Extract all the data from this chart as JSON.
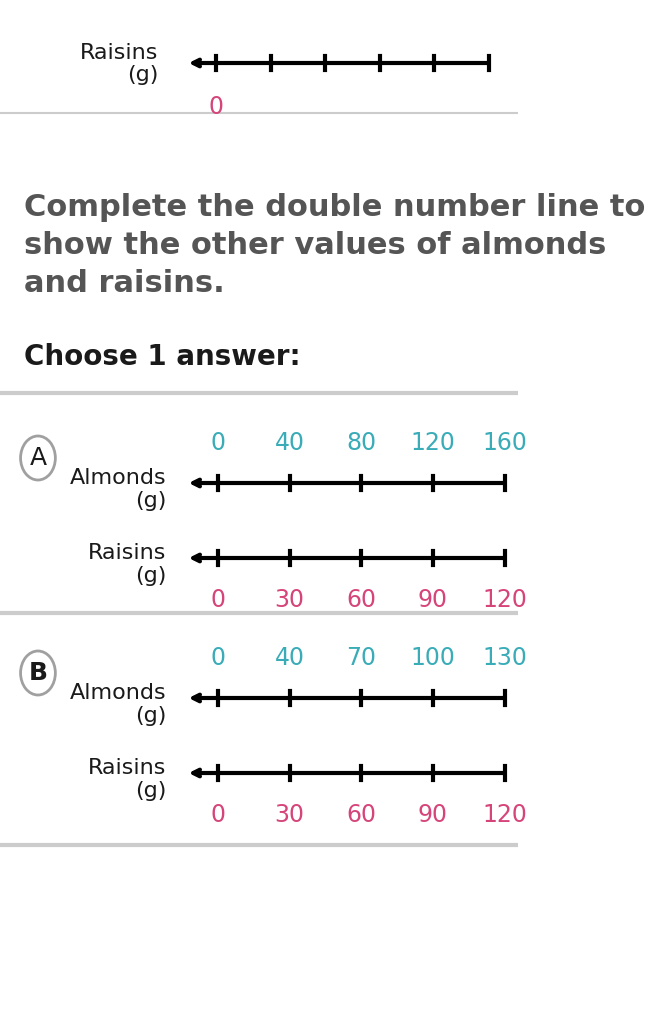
{
  "bg_color": "#ffffff",
  "title_text": "Complete the double number line to\nshow the other values of almonds\nand raisins.",
  "choose_text": "Choose 1 answer:",
  "top_label": "Raisins\n(g)",
  "top_zero": "0",
  "teal_color": "#3aacb8",
  "pink_color": "#d6457a",
  "black_color": "#1a1a1a",
  "gray_color": "#a0a0a0",
  "separator_color": "#cccccc",
  "option_A": {
    "label": "A",
    "almonds_values": [
      "0",
      "40",
      "80",
      "120",
      "160"
    ],
    "raisins_values": [
      "0",
      "30",
      "60",
      "90",
      "120"
    ]
  },
  "option_B": {
    "label": "B",
    "almonds_values": [
      "0",
      "40",
      "70",
      "100",
      "130"
    ],
    "raisins_values": [
      "0",
      "30",
      "60",
      "90",
      "120"
    ]
  }
}
